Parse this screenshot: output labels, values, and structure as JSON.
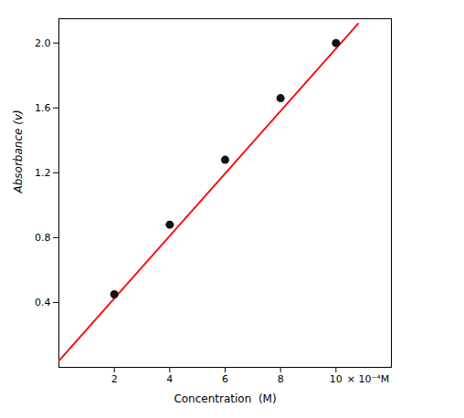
{
  "chart_data": {
    "type": "scatter",
    "xlabel": "Concentration  (M)",
    "ylabel": "Absorbance (v)",
    "xlim": [
      0,
      12.0
    ],
    "ylim": [
      0,
      2.15
    ],
    "xticks": [
      2,
      4,
      6,
      8,
      10
    ],
    "yticks": [
      0.4,
      0.8,
      1.2,
      1.6,
      {
        "value": 2.0,
        "label": "2.0"
      }
    ],
    "grid": false,
    "annotations": [
      "× 10⁻⁴M"
    ],
    "series": [
      {
        "type": "line",
        "color": "#ff0000",
        "line_style": "solid",
        "x": [
          0.0,
          10.8
        ],
        "values": [
          0.04,
          2.12
        ]
      },
      {
        "type": "scatter",
        "color": "#111111",
        "marker": "o",
        "x": [
          2,
          4,
          6,
          8,
          10
        ],
        "values": [
          0.45,
          0.88,
          1.28,
          1.66,
          2.0
        ]
      }
    ]
  }
}
